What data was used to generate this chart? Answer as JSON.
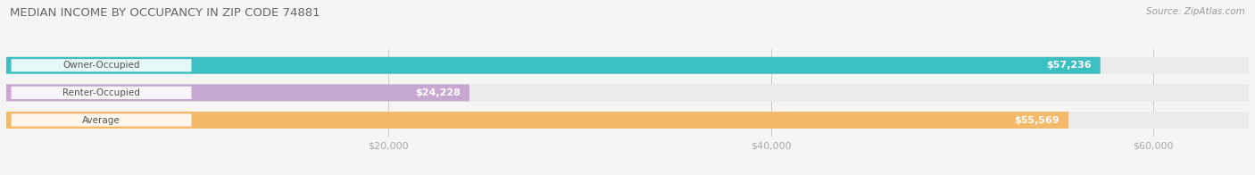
{
  "title": "Median Income by Occupancy in Zip Code 74881",
  "title_display": "MEDIAN INCOME BY OCCUPANCY IN ZIP CODE 74881",
  "source": "Source: ZipAtlas.com",
  "categories": [
    "Owner-Occupied",
    "Renter-Occupied",
    "Average"
  ],
  "values": [
    57236,
    24228,
    55569
  ],
  "bar_colors": [
    "#3bbfc0",
    "#c8a8d3",
    "#f5b96a"
  ],
  "bar_bg_color": "#ebebeb",
  "label_bg_color": "#ffffff",
  "title_color": "#666666",
  "source_color": "#999999",
  "tick_color": "#aaaaaa",
  "value_label_inside_color": "#ffffff",
  "value_label_outside_color": "#888888",
  "category_label_color": "#555555",
  "xlim_max": 65000,
  "xticks": [
    20000,
    40000,
    60000
  ],
  "xtick_labels": [
    "$20,000",
    "$40,000",
    "$60,000"
  ],
  "bar_height": 0.62,
  "figsize": [
    14.06,
    1.96
  ],
  "dpi": 100,
  "background_color": "#f5f5f5",
  "grid_color": "#cccccc",
  "inside_threshold": 0.35
}
